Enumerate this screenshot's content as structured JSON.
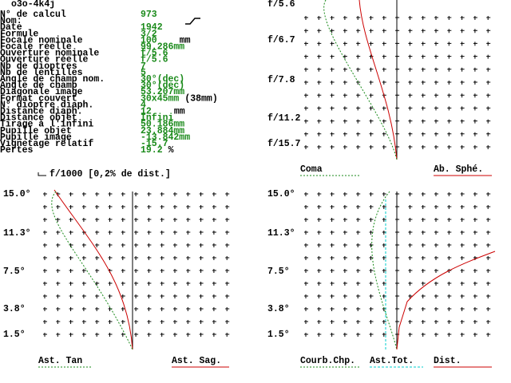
{
  "header": {
    "id": "o3o-4k4j"
  },
  "parameters": [
    {
      "label": "N° de calcul",
      "value": "973"
    },
    {
      "label": "Nom:"
    },
    {
      "label": "Date",
      "value": "1942"
    },
    {
      "label": "Formule",
      "value": "3/2"
    },
    {
      "label": "Focale nominale",
      "value": "100",
      "unit": "mm"
    },
    {
      "label": "Focale réelle",
      "value": "99.286mm"
    },
    {
      "label": "Ouverture nominale",
      "value": "f/5.6"
    },
    {
      "label": "Ouverture réelle",
      "value": "f/5.6"
    },
    {
      "label": "Nb de dioptres",
      "value": "7"
    },
    {
      "label": "Nb de lentilles",
      "value": "5"
    },
    {
      "label": "Angle de champ nom.",
      "value": "30°(dec)"
    },
    {
      "label": "Angle de champ",
      "value": "30°(dec)"
    },
    {
      "label": "Diagonale image",
      "value": "53.207mm"
    },
    {
      "label": "Format couvert",
      "value": "30x45mm",
      "unit": "(38mm)"
    },
    {
      "label": "N° dioptre diaph.",
      "value": "4"
    },
    {
      "label": "Distance diaph.",
      "value": "12",
      "unit": "mm"
    },
    {
      "label": "Distance objet",
      "value": "Infini"
    },
    {
      "label": "Tirage à l'infini",
      "value": "50.186mm"
    },
    {
      "label": "Pupille objet",
      "value": "23.884mm"
    },
    {
      "label": "Pupille image",
      "value": "-13.842mm"
    },
    {
      "label": "Vignetage relatif",
      "value": "-15.7"
    },
    {
      "label": "Pertes",
      "value": "19.2",
      "unit": "%"
    }
  ],
  "note": "f/1000 [0,2% de dist.]",
  "panels": [
    {
      "tick_labels": [
        "f/5.6",
        "f/6.7",
        "f/7.8",
        "f/11.2",
        "f/15.7"
      ],
      "legend": [
        "Coma",
        "Ab. Sphé."
      ]
    },
    {
      "tick_labels": [
        "15.0°",
        "11.3°",
        "7.5°",
        "3.8°",
        "1.5°"
      ],
      "legend": [
        "Ast. Tan",
        "Ast. Sag."
      ]
    },
    {
      "tick_labels": [
        "15.0°",
        "11.3°",
        "7.5°",
        "3.8°",
        "1.5°"
      ],
      "legend": [
        "Courb.Chp.",
        "Ast.Tot.",
        "Dist."
      ]
    }
  ]
}
